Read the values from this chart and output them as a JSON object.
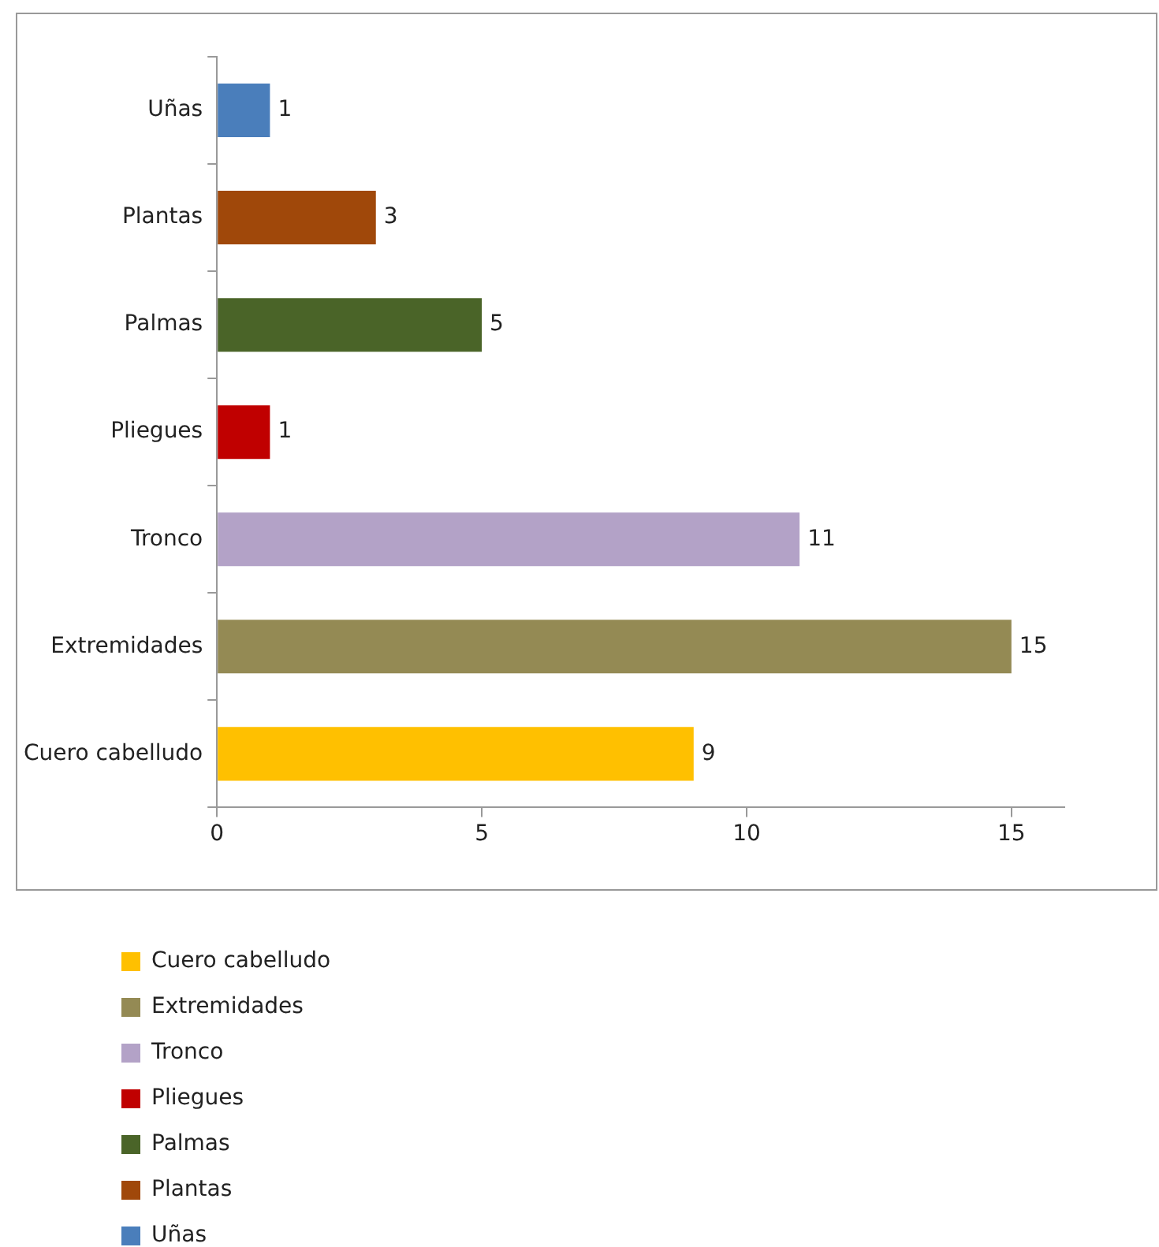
{
  "chart_data": {
    "type": "bar",
    "orientation": "horizontal",
    "categories": [
      "Uñas",
      "Plantas",
      "Palmas",
      "Pliegues",
      "Tronco",
      "Extremidades",
      "Cuero cabelludo"
    ],
    "series": [
      {
        "name": "Cuero cabelludo",
        "color": "#ffc000",
        "values": [
          null,
          null,
          null,
          null,
          null,
          null,
          9
        ]
      },
      {
        "name": "Extremidades",
        "color": "#948a54",
        "values": [
          null,
          null,
          null,
          null,
          null,
          15,
          null
        ]
      },
      {
        "name": "Tronco",
        "color": "#b3a2c7",
        "values": [
          null,
          null,
          null,
          null,
          11,
          null,
          null
        ]
      },
      {
        "name": "Pliegues",
        "color": "#c00000",
        "values": [
          null,
          null,
          null,
          1,
          null,
          null,
          null
        ]
      },
      {
        "name": "Palmas",
        "color": "#4a6428",
        "values": [
          null,
          null,
          5,
          null,
          null,
          null,
          null
        ]
      },
      {
        "name": "Plantas",
        "color": "#a0480a",
        "values": [
          null,
          3,
          null,
          null,
          null,
          null,
          null
        ]
      },
      {
        "name": "Uñas",
        "color": "#4a7ebb",
        "values": [
          1,
          null,
          null,
          null,
          null,
          null,
          null
        ]
      }
    ],
    "xlim": [
      0,
      16
    ],
    "xticks": [
      0,
      5,
      10,
      15
    ],
    "data_labels": true,
    "grid": false,
    "legend": "bottom left"
  }
}
